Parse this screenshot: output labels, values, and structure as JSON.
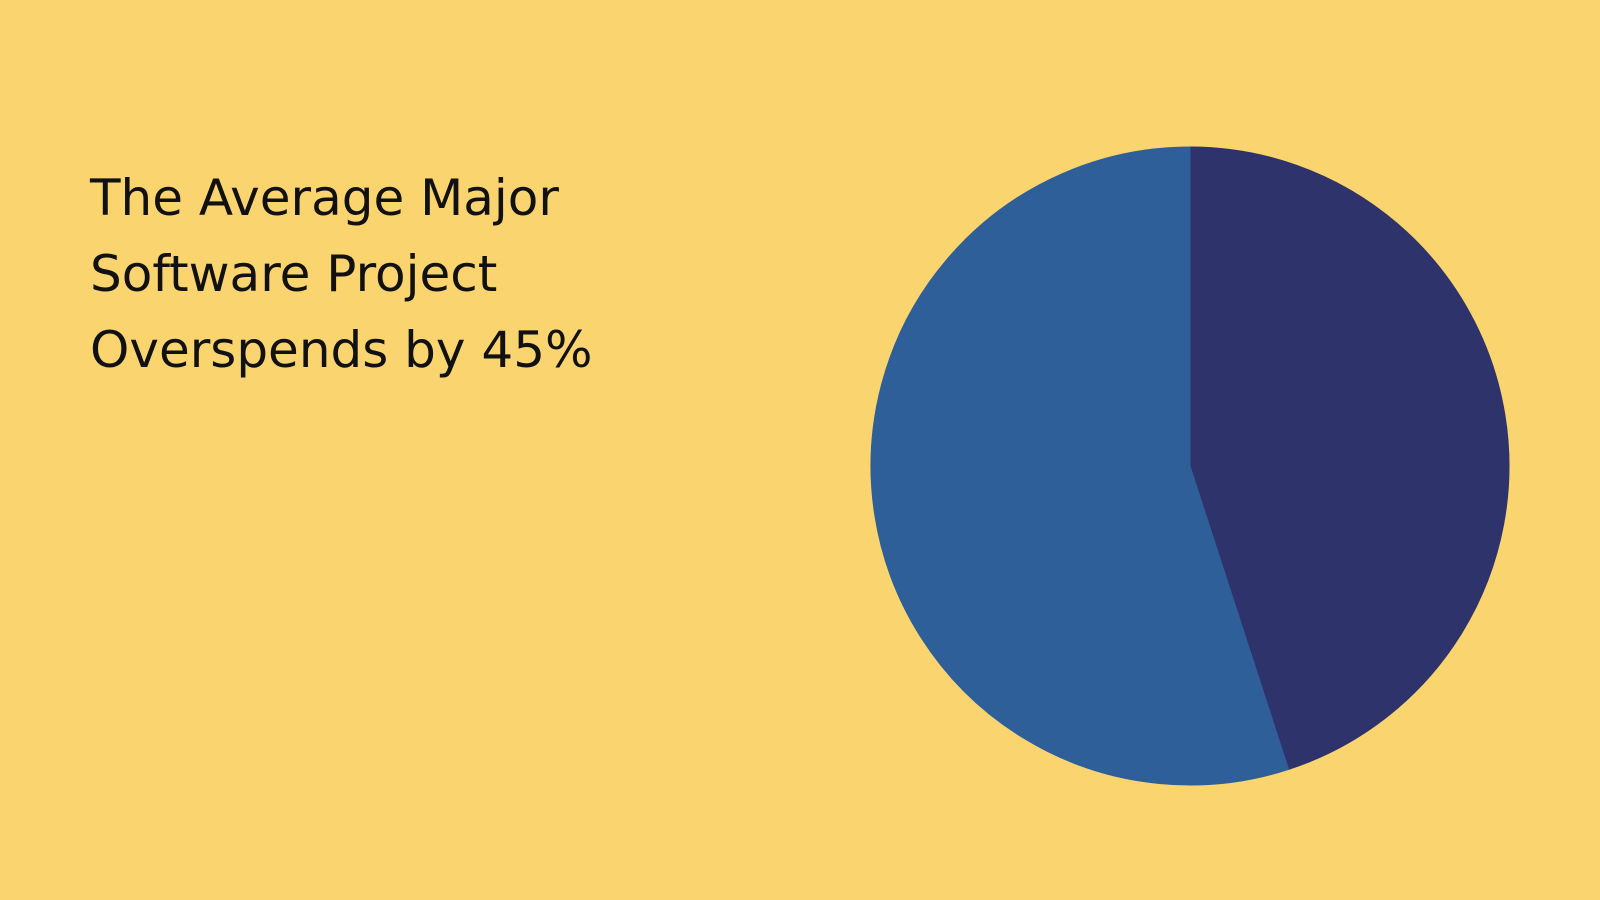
{
  "colors": {
    "background": "#FAD46E",
    "title_text": "#111111"
  },
  "title_lines": [
    "The Average Major",
    "Software Project",
    "Overspends by 45%"
  ],
  "chart_data": {
    "type": "pie",
    "title": "The Average Major Software Project Overspends by 45%",
    "slices": [
      {
        "value": 45,
        "color": "#2F336B"
      },
      {
        "value": 55,
        "color": "#2E5F98"
      }
    ],
    "start_angle_deg": 0,
    "direction": "clockwise",
    "legend": "none"
  }
}
